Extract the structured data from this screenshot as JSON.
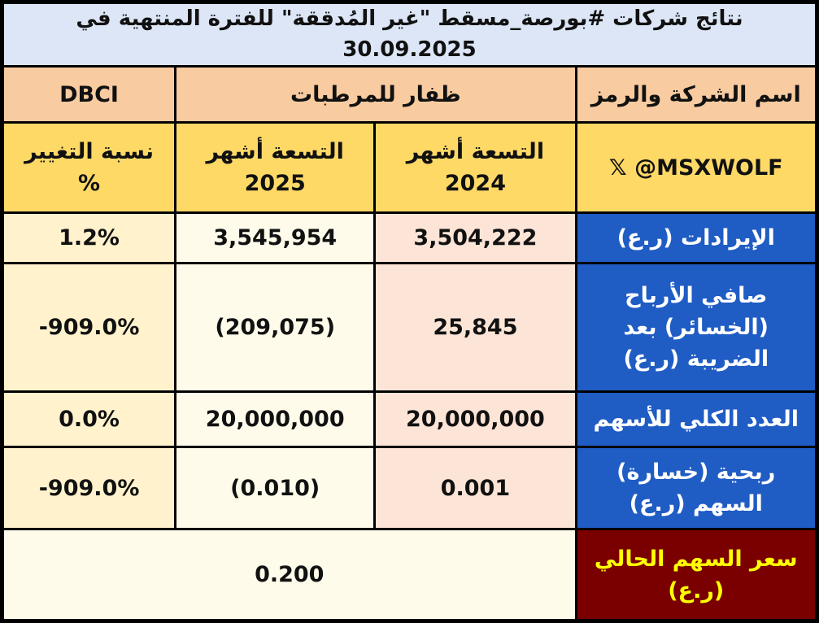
{
  "title": "نتائج شركات #بورصة_مسقط \"غير المُدققة\" للفترة المنتهية في 30.09.2025",
  "header": {
    "row1": [
      "اسم الشركة والرمز",
      "ظفار للمرطبات",
      "DBCI"
    ],
    "row2": [
      "𝕏 @MSXWOLF",
      "التسعة أشهر\n2024",
      "التسعة أشهر\n2025",
      "نسبة التغيير\n%"
    ]
  },
  "rows": [
    {
      "label": "الإيرادات (ر.ع)",
      "values": [
        "3,504,222",
        "3,545,954",
        "1.2%"
      ]
    },
    {
      "label": "صافي الأرباح\n(الخسائر) بعد\nالضريبة (ر.ع)",
      "values": [
        "25,845",
        "(209,075)",
        "-909.0%"
      ]
    },
    {
      "label": "العدد الكلي للأسهم",
      "values": [
        "20,000,000",
        "20,000,000",
        "0.0%"
      ]
    },
    {
      "label": "ربحية (خسارة)\nالسهم (ر.ع)",
      "values": [
        "0.001",
        "(0.010)",
        "-909.0%"
      ]
    }
  ],
  "price": {
    "label": "سعر السهم الحالي\n(ر.ع)",
    "value": "0.200"
  }
}
